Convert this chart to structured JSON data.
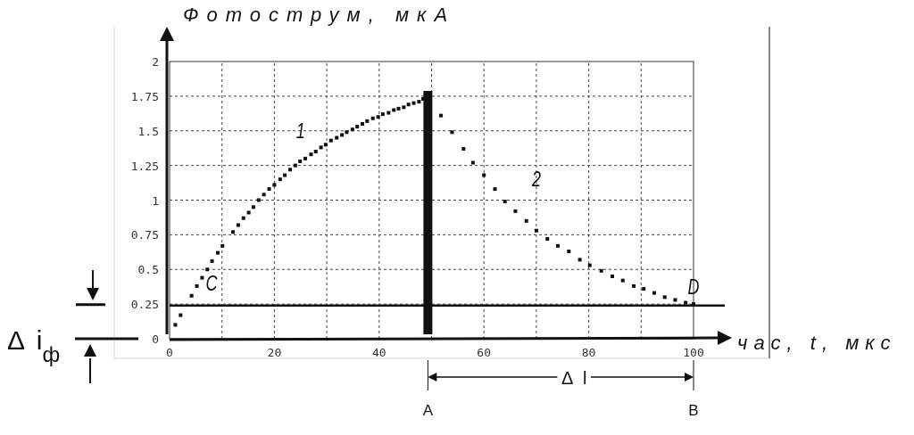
{
  "chart_data": {
    "type": "scatter",
    "xlabel": "час, t, мкс",
    "ylabel": "Фотострум, мкА",
    "xlim": [
      0,
      100
    ],
    "ylim": [
      0,
      2
    ],
    "xticks": [
      0,
      {
        "value": 10,
        "label": null
      },
      20,
      {
        "value": 30,
        "label": null
      },
      40,
      {
        "value": 50,
        "label": null
      },
      60,
      {
        "value": 70,
        "label": null
      },
      80,
      {
        "value": 90,
        "label": null
      },
      100
    ],
    "yticks": [
      0,
      0.25,
      0.5,
      0.75,
      1,
      1.25,
      1.5,
      1.75,
      2
    ],
    "grid": true,
    "marker": "square",
    "series": [
      {
        "color": "#111111",
        "x": [
          1.1,
          2.1,
          4.2,
          5.2,
          6.2,
          7.2,
          8.1,
          9.2,
          10.1,
          12.1,
          13.1,
          14.1,
          15.1,
          16,
          17,
          18,
          19,
          20,
          21.1,
          22,
          23,
          24,
          24.9,
          25.9,
          27,
          27.9,
          28.9,
          29.8,
          30.8,
          31.9,
          32.9,
          33.8,
          34.9,
          35.8,
          36.8,
          37.7,
          38.8,
          39.8,
          40.7,
          41.8,
          42.8,
          43.7,
          44.7,
          45.6,
          46.6,
          47.6,
          48.4
        ],
        "values": [
          0.1,
          0.17,
          0.31,
          0.38,
          0.44,
          0.5,
          0.56,
          0.62,
          0.67,
          0.77,
          0.82,
          0.87,
          0.91,
          0.95,
          1.0,
          1.04,
          1.08,
          1.11,
          1.15,
          1.18,
          1.22,
          1.25,
          1.28,
          1.3,
          1.33,
          1.35,
          1.38,
          1.4,
          1.43,
          1.45,
          1.47,
          1.49,
          1.51,
          1.53,
          1.55,
          1.57,
          1.59,
          1.6,
          1.62,
          1.63,
          1.65,
          1.66,
          1.67,
          1.69,
          1.7,
          1.71,
          1.73
        ]
      },
      {
        "color": "#111111",
        "x": [
          51.8,
          53.9,
          56.1,
          57.9,
          60,
          62.1,
          64,
          66,
          68.1,
          70,
          72.1,
          74.1,
          76.2,
          78.3,
          80.2,
          82.4,
          84.5,
          86.5,
          88.6,
          90.5,
          92.5,
          94.5,
          96.5,
          98.5,
          100
        ],
        "values": [
          1.61,
          1.49,
          1.37,
          1.27,
          1.18,
          1.08,
          0.99,
          0.92,
          0.85,
          0.78,
          0.72,
          0.67,
          0.63,
          0.57,
          0.53,
          0.49,
          0.45,
          0.42,
          0.38,
          0.36,
          0.33,
          0.3,
          0.28,
          0.26,
          0.25
        ]
      }
    ],
    "ref_lines": [
      {
        "axis": "y",
        "value": 0.24,
        "color": "#111111"
      },
      {
        "axis": "x",
        "value": 49.3,
        "color": "#111111"
      }
    ],
    "annotations": [
      "1",
      "2",
      "C",
      "D",
      "A",
      "B",
      "Δ l",
      "Δ i$_{ф}$"
    ]
  }
}
